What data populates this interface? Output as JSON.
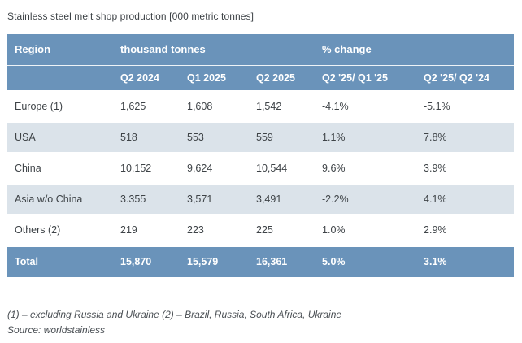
{
  "title": "Stainless steel melt shop production [000 metric tonnes]",
  "table": {
    "group_headers": {
      "region": "Region",
      "thousand_tonnes": "thousand tonnes",
      "pct_change": "% change"
    },
    "column_headers": [
      "Q2 2024",
      "Q1 2025",
      "Q2 2025",
      "Q2 '25/ Q1 '25",
      "Q2 '25/ Q2 '24"
    ],
    "rows": [
      [
        "Europe (1)",
        "1,625",
        "1,608",
        "1,542",
        "-4.1%",
        "-5.1%"
      ],
      [
        "USA",
        "518",
        "553",
        "559",
        "1.1%",
        "7.8%"
      ],
      [
        "China",
        "10,152",
        "9,624",
        "10,544",
        "9.6%",
        "3.9%"
      ],
      [
        "Asia w/o China",
        "3.355",
        "3,571",
        "3,491",
        "-2.2%",
        "4.1%"
      ],
      [
        "Others (2)",
        "219",
        "223",
        "225",
        "1.0%",
        "2.9%"
      ]
    ],
    "total_row": [
      "Total",
      "15,870",
      "15,579",
      "16,361",
      "5.0%",
      "3.1%"
    ]
  },
  "footnotes": {
    "line1": "(1) – excluding Russia and Ukraine (2) – Brazil, Russia, South Africa, Ukraine",
    "line2": "Source: worldstainless"
  },
  "colors": {
    "header_blue": "#6a93ba",
    "alt_row_blue": "#dbe3ea",
    "total_row_blue": "#6a93ba",
    "text_dark": "#3e4347",
    "header_text": "#ffffff"
  }
}
